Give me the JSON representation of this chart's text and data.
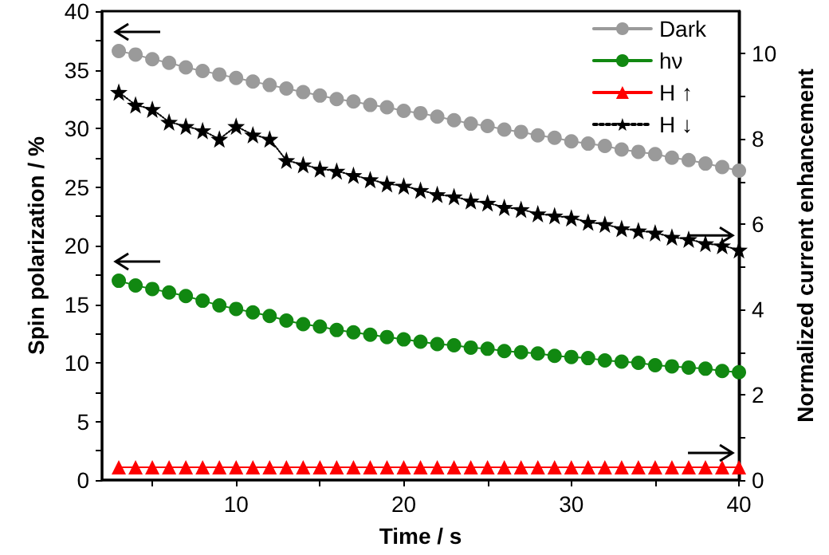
{
  "chart_data": {
    "type": "line",
    "xlabel": "Time / s",
    "ylabel": "Spin polarization / %",
    "y2label": "Normalized current enhancement",
    "x": [
      3,
      4,
      5,
      6,
      7,
      8,
      9,
      10,
      11,
      12,
      13,
      14,
      15,
      16,
      17,
      18,
      19,
      20,
      21,
      22,
      23,
      24,
      25,
      26,
      27,
      28,
      29,
      30,
      31,
      32,
      33,
      34,
      35,
      36,
      37,
      38,
      39,
      40
    ],
    "series": [
      {
        "name": "Dark",
        "color": "#9a9a9a",
        "marker": "circle",
        "values": [
          36.6,
          36.3,
          35.9,
          35.6,
          35.2,
          34.9,
          34.6,
          34.3,
          34.0,
          33.7,
          33.4,
          33.1,
          32.8,
          32.5,
          32.3,
          32.0,
          31.8,
          31.5,
          31.3,
          31.0,
          30.7,
          30.4,
          30.2,
          29.9,
          29.7,
          29.4,
          29.2,
          28.9,
          28.7,
          28.5,
          28.2,
          28.0,
          27.8,
          27.5,
          27.3,
          27.0,
          26.7,
          26.4
        ]
      },
      {
        "name": "hν",
        "color": "#118811",
        "marker": "circle",
        "values": [
          17.0,
          16.6,
          16.3,
          16.0,
          15.7,
          15.3,
          14.9,
          14.6,
          14.3,
          14.0,
          13.6,
          13.3,
          13.1,
          12.8,
          12.6,
          12.4,
          12.2,
          12.0,
          11.8,
          11.6,
          11.5,
          11.3,
          11.2,
          11.0,
          10.9,
          10.8,
          10.6,
          10.5,
          10.4,
          10.2,
          10.1,
          10.0,
          9.8,
          9.7,
          9.6,
          9.5,
          9.3,
          9.2
        ]
      },
      {
        "name": "H ↑",
        "color": "#ff0000",
        "marker": "triangle",
        "axis": "y2",
        "values": [
          0.3,
          0.3,
          0.3,
          0.3,
          0.3,
          0.3,
          0.3,
          0.3,
          0.3,
          0.3,
          0.3,
          0.3,
          0.3,
          0.3,
          0.3,
          0.3,
          0.3,
          0.3,
          0.3,
          0.3,
          0.3,
          0.3,
          0.3,
          0.3,
          0.3,
          0.3,
          0.3,
          0.3,
          0.3,
          0.3,
          0.3,
          0.3,
          0.3,
          0.3,
          0.3,
          0.3,
          0.3,
          0.3
        ]
      },
      {
        "name": "H ↓",
        "color": "#000000",
        "marker": "star",
        "line_style": "dotted",
        "axis": "y2",
        "values": [
          9.1,
          8.8,
          8.7,
          8.4,
          8.3,
          8.2,
          8.0,
          8.3,
          8.1,
          8.0,
          7.5,
          7.4,
          7.3,
          7.25,
          7.15,
          7.05,
          6.95,
          6.9,
          6.8,
          6.7,
          6.65,
          6.55,
          6.5,
          6.4,
          6.35,
          6.25,
          6.2,
          6.15,
          6.05,
          6.0,
          5.9,
          5.85,
          5.8,
          5.7,
          5.65,
          5.55,
          5.5,
          5.4
        ]
      }
    ],
    "xlim": [
      2,
      40
    ],
    "xticks": [
      {
        "value": 5,
        "label": null
      },
      10,
      {
        "value": 15,
        "label": null
      },
      20,
      {
        "value": 25,
        "label": null
      },
      30,
      {
        "value": 35,
        "label": null
      },
      40
    ],
    "ylim": [
      0,
      40
    ],
    "yticks": [
      0,
      {
        "value": 2.5,
        "label": null
      },
      5,
      {
        "value": 7.5,
        "label": null
      },
      10,
      {
        "value": 12.5,
        "label": null
      },
      15,
      {
        "value": 17.5,
        "label": null
      },
      20,
      {
        "value": 22.5,
        "label": null
      },
      25,
      {
        "value": 27.5,
        "label": null
      },
      30,
      {
        "value": 32.5,
        "label": null
      },
      35,
      {
        "value": 37.5,
        "label": null
      },
      40
    ],
    "y2lim": [
      0,
      11
    ],
    "y2ticks": [
      0,
      {
        "value": 1,
        "label": null
      },
      2,
      {
        "value": 3,
        "label": null
      },
      4,
      {
        "value": 5,
        "label": null
      },
      6,
      {
        "value": 7,
        "label": null
      },
      8,
      {
        "value": 9,
        "label": null
      },
      10
    ],
    "grid": false,
    "legend": "top right"
  }
}
